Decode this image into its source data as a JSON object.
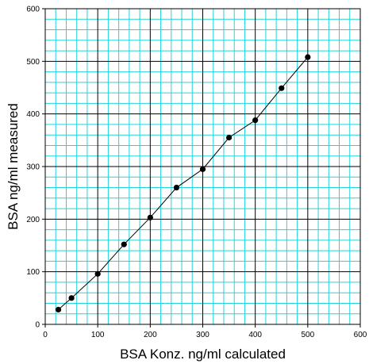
{
  "chart_data": {
    "type": "line",
    "title": "",
    "xlabel": "BSA Konz. ng/ml calculated",
    "ylabel": "BSA ng/ml measured",
    "xlim": [
      0,
      600
    ],
    "ylim": [
      0,
      600
    ],
    "xticks": [
      0,
      100,
      200,
      300,
      400,
      500,
      600
    ],
    "yticks": [
      0,
      100,
      200,
      300,
      400,
      500,
      600
    ],
    "grid": {
      "minor": true,
      "major": true,
      "minor_step": 20,
      "major_step": 100,
      "minor_color": "#22d3dc",
      "major_color": "#000000"
    },
    "series": [
      {
        "color": "#000000",
        "x": [
          25,
          50,
          100,
          150,
          200,
          250,
          300,
          350,
          400,
          450,
          500
        ],
        "y": [
          28,
          50,
          96,
          152,
          203,
          260,
          295,
          355,
          388,
          449,
          508
        ]
      }
    ]
  }
}
